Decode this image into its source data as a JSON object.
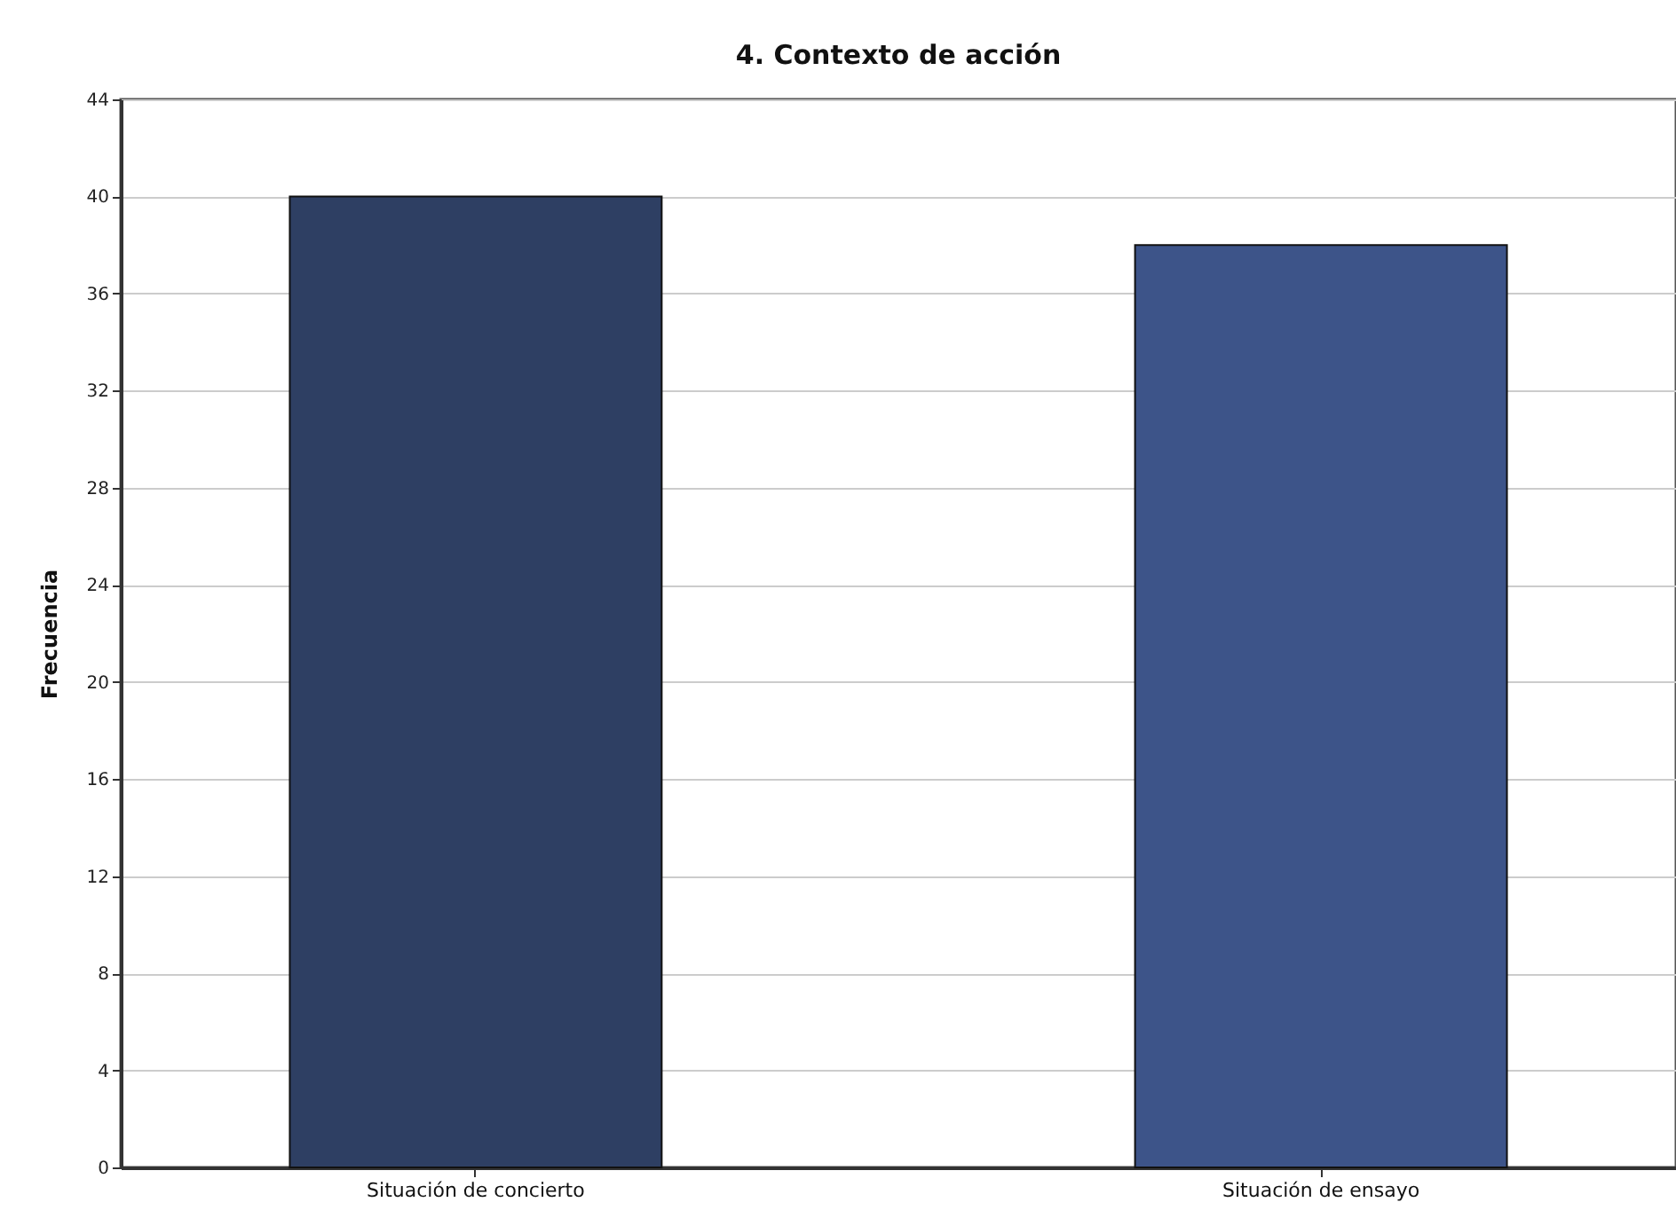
{
  "chart_data": {
    "type": "bar",
    "title": "4. Contexto de acción",
    "ylabel": "Frecuencia",
    "categories": [
      "Situación de concierto",
      "Situación de ensayo"
    ],
    "values": [
      40,
      38
    ],
    "colors": [
      "#2e3f63",
      "#3d5489"
    ],
    "ylim": [
      0,
      44
    ],
    "yticks": [
      0,
      4,
      8,
      12,
      16,
      20,
      24,
      28,
      32,
      36,
      40,
      44
    ],
    "grid": "y"
  }
}
